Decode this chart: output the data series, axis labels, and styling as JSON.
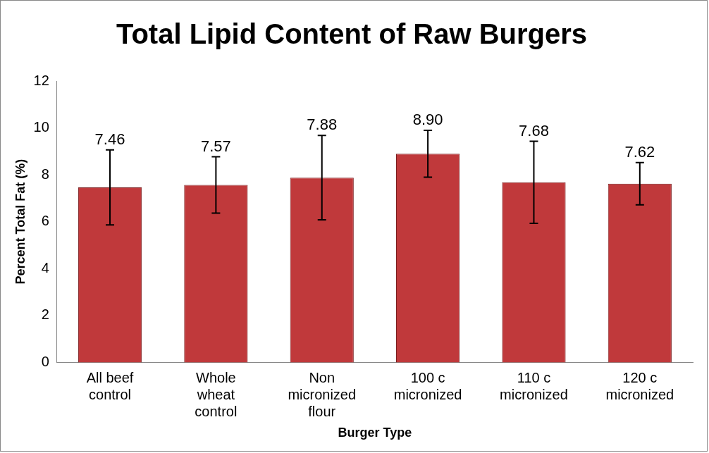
{
  "chart_data": {
    "type": "bar",
    "title": "Total Lipid Content of Raw Burgers",
    "xlabel": "Burger Type",
    "ylabel": "Percent Total Fat (%)",
    "categories": [
      "All beef control",
      "Whole wheat control",
      "Non micronized flour",
      "100 c micronized",
      "110 c micronized",
      "120 c micronized"
    ],
    "values": [
      7.46,
      7.57,
      7.88,
      8.9,
      7.68,
      7.62
    ],
    "errors": [
      1.6,
      1.2,
      1.8,
      1.0,
      1.75,
      0.9
    ],
    "value_labels": [
      "7.46",
      "7.57",
      "7.88",
      "8.90",
      "7.68",
      "7.62"
    ],
    "color": "#c0393b",
    "ylim": [
      0,
      12
    ],
    "yticks": [
      0,
      2,
      4,
      6,
      8,
      10,
      12
    ],
    "grid": false,
    "legend": false
  }
}
